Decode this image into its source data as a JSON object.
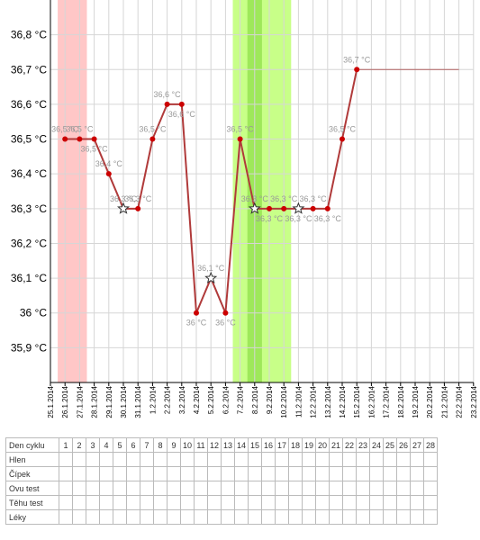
{
  "chart_data": {
    "type": "line",
    "title": "",
    "xlabel": "",
    "ylabel": "",
    "ylim": [
      35.8,
      36.9
    ],
    "ytick_values": [
      35.9,
      36.0,
      36.1,
      36.2,
      36.3,
      36.4,
      36.5,
      36.6,
      36.7,
      36.8
    ],
    "ytick_labels": [
      "35,9 °C",
      "36 °C",
      "36,1 °C",
      "36,2 °C",
      "36,3 °C",
      "36,4 °C",
      "36,5 °C",
      "36,6 °C",
      "36,7 °C",
      "36,8 °C"
    ],
    "grid": true,
    "x_dates": [
      "25.1.2014",
      "26.1.2014",
      "27.1.2014",
      "28.1.2014",
      "29.1.2014",
      "30.1.2014",
      "31.1.2014",
      "1.2.2014",
      "2.2.2014",
      "3.2.2014",
      "4.2.2014",
      "5.2.2014",
      "6.2.2014",
      "7.2.2014",
      "8.2.2014",
      "9.2.2014",
      "10.2.2014",
      "11.2.2014",
      "12.2.2014",
      "13.2.2014",
      "14.2.2014",
      "15.2.2014",
      "16.2.2014",
      "17.2.2014",
      "18.2.2014",
      "19.2.2014",
      "20.2.2014",
      "21.2.2014",
      "22.2.2014",
      "23.2.2014"
    ],
    "series": [
      {
        "color": "#cc0000",
        "line_color": "#b03a3a",
        "points": [
          {
            "x": "26.1.2014",
            "y": 36.5,
            "label": "36,5 °C",
            "marker": "dot"
          },
          {
            "x": "27.1.2014",
            "y": 36.5,
            "label": "36,5 °C",
            "marker": "dot"
          },
          {
            "x": "28.1.2014",
            "y": 36.5,
            "label": "36,5 °C",
            "marker": "dot"
          },
          {
            "x": "29.1.2014",
            "y": 36.4,
            "label": "36,4 °C",
            "marker": "dot"
          },
          {
            "x": "30.1.2014",
            "y": 36.3,
            "label": "36,3 °C",
            "marker": "star"
          },
          {
            "x": "31.1.2014",
            "y": 36.3,
            "label": "36,3 °C",
            "marker": "dot"
          },
          {
            "x": "1.2.2014",
            "y": 36.5,
            "label": "36,5 °C",
            "marker": "dot"
          },
          {
            "x": "2.2.2014",
            "y": 36.6,
            "label": "36,6 °C",
            "marker": "dot"
          },
          {
            "x": "3.2.2014",
            "y": 36.6,
            "label": "36,6 °C",
            "marker": "dot"
          },
          {
            "x": "4.2.2014",
            "y": 36.0,
            "label": "36 °C",
            "marker": "dot"
          },
          {
            "x": "5.2.2014",
            "y": 36.1,
            "label": "36,1 °C",
            "marker": "star"
          },
          {
            "x": "6.2.2014",
            "y": 36.0,
            "label": "36 °C",
            "marker": "dot"
          },
          {
            "x": "7.2.2014",
            "y": 36.5,
            "label": "36,5 °C",
            "marker": "dot"
          },
          {
            "x": "8.2.2014",
            "y": 36.3,
            "label": "36,3 °C",
            "marker": "star"
          },
          {
            "x": "9.2.2014",
            "y": 36.3,
            "label": "36,3 °C",
            "marker": "dot"
          },
          {
            "x": "10.2.2014",
            "y": 36.3,
            "label": "36,3 °C",
            "marker": "dot"
          },
          {
            "x": "11.2.2014",
            "y": 36.3,
            "label": "36,3 °C",
            "marker": "star"
          },
          {
            "x": "12.2.2014",
            "y": 36.3,
            "label": "36,3 °C",
            "marker": "dot"
          },
          {
            "x": "13.2.2014",
            "y": 36.3,
            "label": "36,3 °C",
            "marker": "dot"
          },
          {
            "x": "14.2.2014",
            "y": 36.5,
            "label": "36,5 °C",
            "marker": "dot"
          },
          {
            "x": "15.2.2014",
            "y": 36.7,
            "label": "36,7 °C",
            "marker": "dot"
          }
        ]
      }
    ],
    "extension_line": {
      "from": "15.2.2014",
      "to": "22.2.2014",
      "y": 36.7,
      "color": "#b06060"
    },
    "bands": [
      {
        "from": "25.1.2014",
        "to": "27.1.2014",
        "color": "#ffc7c7"
      },
      {
        "from": "6.2.2014",
        "to": "10.2.2014",
        "color": "#c8ff88"
      },
      {
        "from": "8.2.2014",
        "to": "8.2.2014",
        "color": "#9ee85a"
      }
    ]
  },
  "cycle_table": {
    "header_label": "Den cyklu",
    "days": [
      "1",
      "2",
      "3",
      "4",
      "5",
      "6",
      "7",
      "8",
      "9",
      "10",
      "11",
      "12",
      "13",
      "14",
      "15",
      "16",
      "17",
      "18",
      "19",
      "20",
      "21",
      "22",
      "23",
      "24",
      "25",
      "26",
      "27",
      "28"
    ],
    "rows": [
      "Hlen",
      "Čípek",
      "Ovu test",
      "Těhu test",
      "Léky"
    ]
  }
}
